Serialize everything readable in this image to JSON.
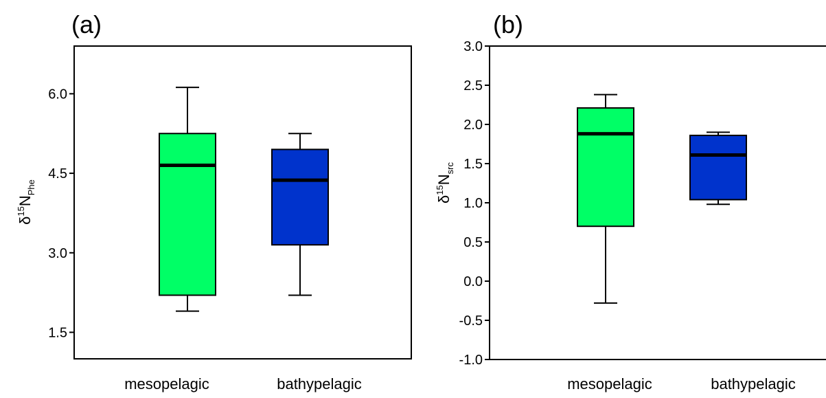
{
  "chart_data": [
    {
      "type": "box",
      "panel_label": "(a)",
      "ylabel_main": "δ",
      "ylabel_sup": "15",
      "ylabel_mid": "N",
      "ylabel_sub": "Phe",
      "categories": [
        "mesopelagic",
        "bathypelagic"
      ],
      "ylim": [
        1.0,
        6.9
      ],
      "yticks": [
        "6.0",
        "4.5",
        "3.0",
        "1.5"
      ],
      "ytick_values": [
        6.0,
        4.5,
        3.0,
        1.5
      ],
      "boxes": [
        {
          "category": "mesopelagic",
          "min": 1.9,
          "q1": 2.2,
          "median": 4.65,
          "q3": 5.25,
          "max": 6.12,
          "color": "#00FF66"
        },
        {
          "category": "bathypelagic",
          "min": 2.2,
          "q1": 3.15,
          "median": 4.37,
          "q3": 4.95,
          "max": 5.25,
          "color": "#0033CC"
        }
      ]
    },
    {
      "type": "box",
      "panel_label": "(b)",
      "ylabel_main": "δ",
      "ylabel_sup": "15",
      "ylabel_mid": "N",
      "ylabel_sub": "src",
      "categories": [
        "mesopelagic",
        "bathypelagic"
      ],
      "ylim": [
        -1.0,
        3.0
      ],
      "yticks": [
        "3.0",
        "2.5",
        "2.0",
        "1.5",
        "1.0",
        "0.5",
        "0.0",
        "-0.5",
        "-1.0"
      ],
      "ytick_values": [
        3.0,
        2.5,
        2.0,
        1.5,
        1.0,
        0.5,
        0.0,
        -0.5,
        -1.0
      ],
      "boxes": [
        {
          "category": "mesopelagic",
          "min": -0.28,
          "q1": 0.7,
          "median": 1.88,
          "q3": 2.21,
          "max": 2.38,
          "color": "#00FF66"
        },
        {
          "category": "bathypelagic",
          "min": 0.98,
          "q1": 1.04,
          "median": 1.61,
          "q3": 1.86,
          "max": 1.9,
          "color": "#0033CC"
        }
      ]
    }
  ]
}
